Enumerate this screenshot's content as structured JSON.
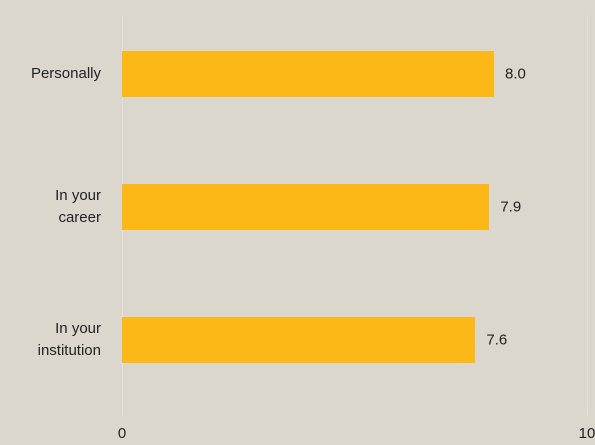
{
  "chart_data": {
    "type": "bar",
    "orientation": "horizontal",
    "categories": [
      "Personally",
      "In your career",
      "In your institution"
    ],
    "values": [
      8.0,
      7.9,
      7.6
    ],
    "value_labels": [
      "8.0",
      "7.9",
      "7.6"
    ],
    "color": "#fbb817",
    "xlim": [
      0,
      10
    ],
    "xticks": [
      0,
      10
    ],
    "grid": true
  }
}
